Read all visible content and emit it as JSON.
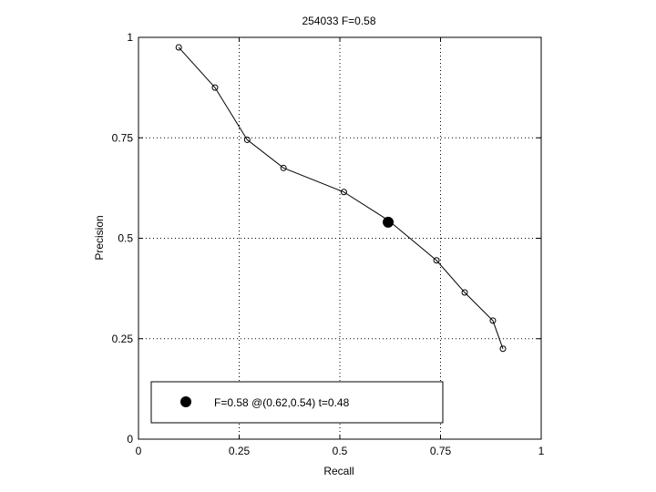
{
  "chart_data": {
    "type": "line",
    "title": "254033 F=0.58",
    "xlabel": "Recall",
    "ylabel": "Precision",
    "xlim": [
      0,
      1
    ],
    "ylim": [
      0,
      1
    ],
    "grid": true,
    "grid_style": "dotted",
    "x_ticks": [
      0,
      0.25,
      0.5,
      0.75,
      1
    ],
    "x_tick_labels": [
      "0",
      "0.25",
      "0.5",
      "0.75",
      "1"
    ],
    "y_ticks": [
      0,
      0.25,
      0.5,
      0.75,
      1
    ],
    "y_tick_labels": [
      "0",
      "0.25",
      "0.5",
      "0.75",
      "1"
    ],
    "series": [
      {
        "marker": "open-circle",
        "color": "#000000",
        "x": [
          0.1,
          0.19,
          0.27,
          0.36,
          0.51,
          0.62,
          0.74,
          0.81,
          0.88,
          0.905
        ],
        "y": [
          0.975,
          0.875,
          0.745,
          0.675,
          0.615,
          0.545,
          0.445,
          0.365,
          0.295,
          0.225
        ]
      }
    ],
    "highlight_point": {
      "x": 0.62,
      "y": 0.54,
      "marker": "filled-circle",
      "color": "#000000"
    },
    "legend": {
      "location": "bottom-left",
      "entries": [
        {
          "label": "F=0.58 @(0.62,0.54) t=0.48",
          "marker": "filled-circle"
        }
      ]
    }
  }
}
